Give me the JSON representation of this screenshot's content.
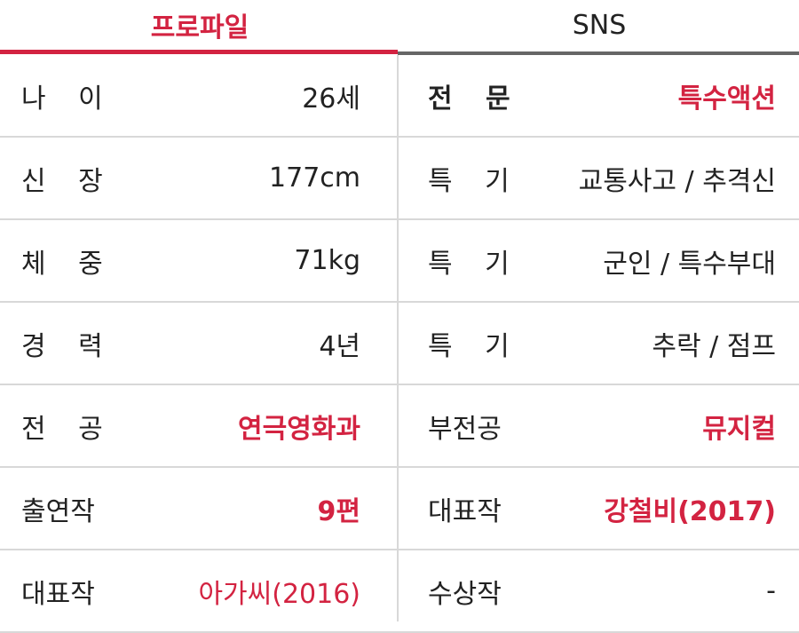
{
  "tabs": {
    "profile": "프로파일",
    "sns": "SNS"
  },
  "colors": {
    "accent": "#d32341",
    "text": "#222222",
    "grid": "#d8d8d8",
    "inactive_underline": "#666666"
  },
  "rows": [
    {
      "left_label": "나 이",
      "left_value": "26세",
      "right_label": "전 문",
      "right_value": "특수액션"
    },
    {
      "left_label": "신 장",
      "left_value": "177cm",
      "right_label": "특 기",
      "right_value": "교통사고 / 추격신"
    },
    {
      "left_label": "체 중",
      "left_value": "71kg",
      "right_label": "특 기",
      "right_value": "군인 / 특수부대"
    },
    {
      "left_label": "경 력",
      "left_value": "4년",
      "right_label": "특 기",
      "right_value": "추락 / 점프"
    },
    {
      "left_label": "전 공",
      "left_value": "연극영화과",
      "right_label": "부전공",
      "right_value": "뮤지컬"
    },
    {
      "left_label": "출연작",
      "left_value": "9편",
      "right_label": "대표작",
      "right_value": "강철비(2017)"
    },
    {
      "left_label": "대표작",
      "left_value": "아가씨(2016)",
      "right_label": "수상작",
      "right_value": "-"
    }
  ]
}
